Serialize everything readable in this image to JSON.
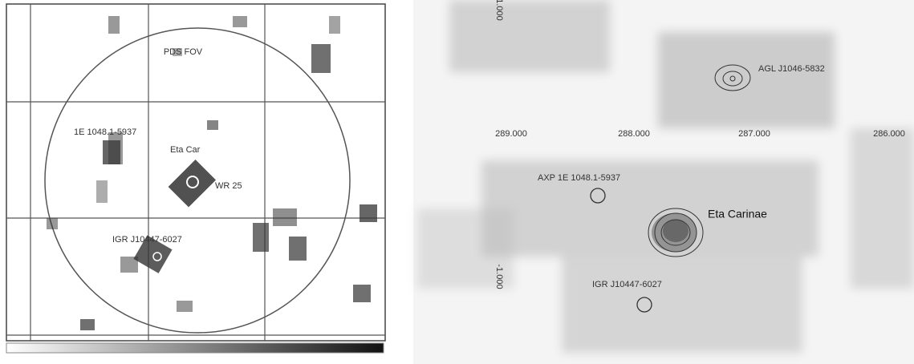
{
  "left_panel": {
    "labels": [
      "PDS FOV",
      "1E 1048.1-5937",
      "Eta Car",
      "WR 25",
      "IGR J10447-6027"
    ]
  },
  "right_panel": {
    "labels": [
      "AGL J1046-5832",
      "AXP 1E 1048.1-5937",
      "Eta Carinae",
      "IGR J10447-6027"
    ],
    "x_ticks": [
      "289.000",
      "288.000",
      "287.000",
      "286.000"
    ],
    "y_ticks": [
      "1.000",
      "-1.000"
    ]
  }
}
